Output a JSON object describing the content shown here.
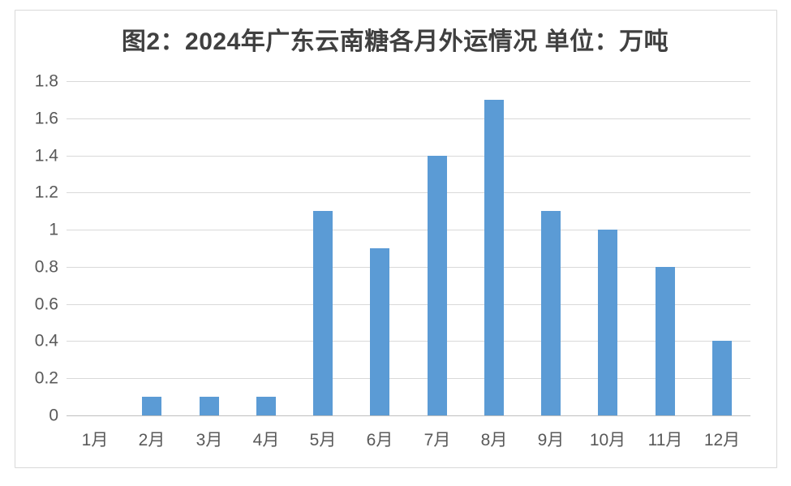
{
  "chart_data": {
    "type": "bar",
    "title": "图2：2024年广东云南糖各月外运情况 单位：万吨",
    "unit": "万吨",
    "categories": [
      "1月",
      "2月",
      "3月",
      "4月",
      "5月",
      "6月",
      "7月",
      "8月",
      "9月",
      "10月",
      "11月",
      "12月"
    ],
    "values": [
      0,
      0.1,
      0.1,
      0.1,
      1.1,
      0.9,
      1.4,
      1.7,
      1.1,
      1.0,
      0.8,
      0.4
    ],
    "xlabel": "",
    "ylabel": "",
    "ylim": [
      0,
      1.8
    ],
    "ytick_step": 0.2,
    "ytick_labels": [
      "0",
      "0.2",
      "0.4",
      "0.6",
      "0.8",
      "1",
      "1.2",
      "1.4",
      "1.6",
      "1.8"
    ],
    "grid": true,
    "legend_position": "none",
    "colors": {
      "bar": "#5b9bd5",
      "gridline": "#d9d9d9",
      "axis_line": "#bfbfbf",
      "tick_label": "#595959",
      "title": "#404040",
      "frame_border": "#d9d9d9",
      "background": "#ffffff"
    }
  }
}
